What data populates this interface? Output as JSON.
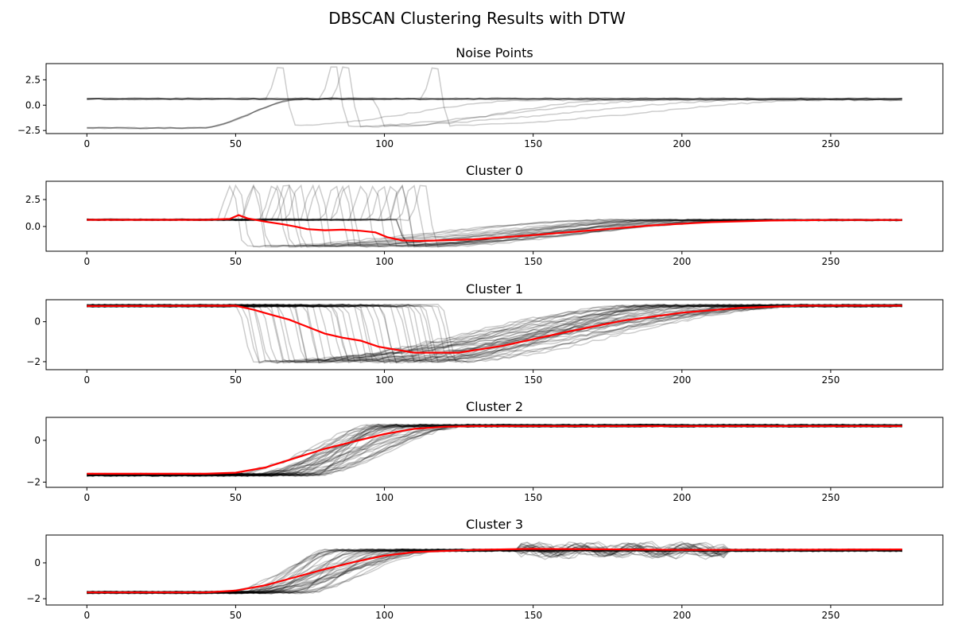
{
  "chart_data": {
    "title": "DBSCAN Clustering Results with DTW",
    "type": "line",
    "x_range": [
      0,
      274
    ],
    "xlim": [
      -13.7,
      287.7
    ],
    "x_ticks": [
      0,
      50,
      100,
      150,
      200,
      250
    ],
    "colors": {
      "member": "#000000",
      "centroid": "#ff0000"
    },
    "panels": [
      {
        "title": "Noise Points",
        "ylim": [
          -2.8,
          4.1
        ],
        "y_ticks": [
          -2.5,
          0.0,
          2.5
        ],
        "y_tick_labels": [
          "−2.5",
          "0.0",
          "2.5"
        ],
        "members": [
          {
            "kind": "flat",
            "level": 0.65,
            "count": 3
          },
          {
            "kind": "rise",
            "low": -2.25,
            "high": 0.6,
            "t1": 38,
            "t2": 72,
            "count": 4
          },
          {
            "kind": "spike_rise",
            "base": 0.6,
            "spike_at": 64,
            "spike_h": 3.7,
            "low": -2.0,
            "high": 0.5,
            "t2": 150,
            "count": 1
          },
          {
            "kind": "spike_rise",
            "base": 0.6,
            "spike_at": 82,
            "spike_h": 3.7,
            "low": -2.05,
            "high": 0.55,
            "t2": 200,
            "count": 1
          },
          {
            "kind": "spike_rise",
            "base": 0.6,
            "spike_at": 86,
            "spike_h": 3.7,
            "low": -2.1,
            "high": 0.55,
            "t2": 230,
            "count": 1
          },
          {
            "kind": "spike_rise",
            "base": 0.6,
            "spike_at": 116,
            "spike_h": 3.6,
            "low": -2.0,
            "high": 0.6,
            "t2": 255,
            "count": 1
          },
          {
            "kind": "drop_rise",
            "base": 0.6,
            "drop_at": 97,
            "low": -2.1,
            "high": 0.55,
            "t2": 180,
            "count": 1
          }
        ],
        "centroid": []
      },
      {
        "title": "Cluster 0",
        "ylim": [
          -2.3,
          4.2
        ],
        "y_ticks": [
          0.0,
          2.5
        ],
        "y_tick_labels": [
          "0.0",
          "2.5"
        ],
        "members": [
          {
            "kind": "spike_family",
            "base": 0.62,
            "spike_h": 3.75,
            "low": -1.85,
            "high": 0.6,
            "spike_from": 48,
            "spike_to": 112,
            "count": 22
          },
          {
            "kind": "flat_then_drop",
            "base": 0.65,
            "drop_at": 104,
            "low": -1.7,
            "high": 0.6,
            "count": 3
          }
        ],
        "centroid": [
          [
            0,
            0.62
          ],
          [
            40,
            0.62
          ],
          [
            48,
            0.7
          ],
          [
            51,
            1.05
          ],
          [
            54,
            0.75
          ],
          [
            60,
            0.45
          ],
          [
            66,
            0.2
          ],
          [
            70,
            0.0
          ],
          [
            74,
            -0.25
          ],
          [
            80,
            -0.35
          ],
          [
            86,
            -0.3
          ],
          [
            92,
            -0.4
          ],
          [
            97,
            -0.55
          ],
          [
            101,
            -1.0
          ],
          [
            106,
            -1.3
          ],
          [
            112,
            -1.35
          ],
          [
            130,
            -1.2
          ],
          [
            150,
            -0.8
          ],
          [
            170,
            -0.35
          ],
          [
            190,
            0.1
          ],
          [
            210,
            0.4
          ],
          [
            230,
            0.55
          ],
          [
            250,
            0.6
          ],
          [
            274,
            0.6
          ]
        ]
      },
      {
        "title": "Cluster 1",
        "ylim": [
          -2.4,
          1.1
        ],
        "y_ticks": [
          -2,
          0
        ],
        "y_tick_labels": [
          "−2",
          "0"
        ],
        "members": [
          {
            "kind": "drop_family",
            "base": 0.8,
            "low": -2.0,
            "high": 0.8,
            "drop_from": 50,
            "drop_to": 120,
            "count": 40
          }
        ],
        "centroid": [
          [
            0,
            0.78
          ],
          [
            50,
            0.8
          ],
          [
            56,
            0.6
          ],
          [
            62,
            0.35
          ],
          [
            68,
            0.1
          ],
          [
            74,
            -0.25
          ],
          [
            80,
            -0.6
          ],
          [
            86,
            -0.8
          ],
          [
            92,
            -0.95
          ],
          [
            98,
            -1.25
          ],
          [
            104,
            -1.4
          ],
          [
            110,
            -1.55
          ],
          [
            125,
            -1.55
          ],
          [
            140,
            -1.2
          ],
          [
            160,
            -0.55
          ],
          [
            180,
            0.05
          ],
          [
            200,
            0.45
          ],
          [
            220,
            0.7
          ],
          [
            240,
            0.8
          ],
          [
            274,
            0.8
          ]
        ]
      },
      {
        "title": "Cluster 2",
        "ylim": [
          -2.25,
          1.1
        ],
        "y_ticks": [
          -2,
          0
        ],
        "y_tick_labels": [
          "−2",
          "0"
        ],
        "members": [
          {
            "kind": "rise_family",
            "low": -1.65,
            "high": 0.7,
            "start_from": 48,
            "start_to": 100,
            "count": 40
          }
        ],
        "centroid": [
          [
            0,
            -1.6
          ],
          [
            40,
            -1.6
          ],
          [
            50,
            -1.55
          ],
          [
            60,
            -1.3
          ],
          [
            70,
            -0.85
          ],
          [
            80,
            -0.4
          ],
          [
            90,
            -0.05
          ],
          [
            100,
            0.3
          ],
          [
            110,
            0.55
          ],
          [
            120,
            0.65
          ],
          [
            130,
            0.68
          ],
          [
            274,
            0.68
          ]
        ]
      },
      {
        "title": "Cluster 3",
        "ylim": [
          -2.35,
          1.55
        ],
        "y_ticks": [
          -2,
          0
        ],
        "y_tick_labels": [
          "−2",
          "0"
        ],
        "members": [
          {
            "kind": "rise_wave_family",
            "low": -1.65,
            "high": 0.7,
            "start_from": 45,
            "start_to": 100,
            "wave_from": 145,
            "wave_to": 215,
            "count": 40
          }
        ],
        "centroid": [
          [
            0,
            -1.65
          ],
          [
            40,
            -1.65
          ],
          [
            50,
            -1.55
          ],
          [
            60,
            -1.25
          ],
          [
            70,
            -0.8
          ],
          [
            80,
            -0.35
          ],
          [
            90,
            0.05
          ],
          [
            100,
            0.4
          ],
          [
            110,
            0.6
          ],
          [
            130,
            0.72
          ],
          [
            150,
            0.78
          ],
          [
            180,
            0.75
          ],
          [
            200,
            0.72
          ],
          [
            220,
            0.72
          ],
          [
            274,
            0.75
          ]
        ]
      }
    ]
  }
}
